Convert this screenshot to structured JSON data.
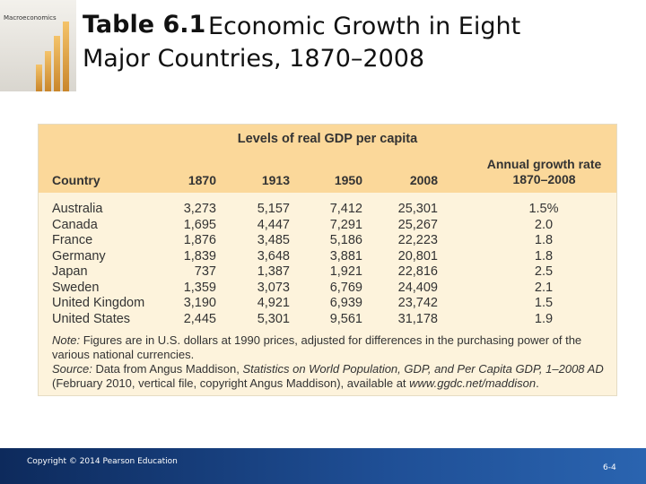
{
  "cover": {
    "title": "Macroeconomics"
  },
  "header": {
    "label": "Table 6.1",
    "title": "Economic Growth in Eight Major Countries, 1870–2008"
  },
  "table": {
    "group_header": "Levels of real GDP per capita",
    "columns": [
      "Country",
      "1870",
      "1913",
      "1950",
      "2008",
      "Annual growth rate 1870–2008"
    ],
    "rows": [
      [
        "Australia",
        "3,273",
        "5,157",
        "7,412",
        "25,301",
        "1.5%"
      ],
      [
        "Canada",
        "1,695",
        "4,447",
        "7,291",
        "25,267",
        "2.0"
      ],
      [
        "France",
        "1,876",
        "3,485",
        "5,186",
        "22,223",
        "1.8"
      ],
      [
        "Germany",
        "1,839",
        "3,648",
        "3,881",
        "20,801",
        "1.8"
      ],
      [
        "Japan",
        "737",
        "1,387",
        "1,921",
        "22,816",
        "2.5"
      ],
      [
        "Sweden",
        "1,359",
        "3,073",
        "6,769",
        "24,409",
        "2.1"
      ],
      [
        "United Kingdom",
        "3,190",
        "4,921",
        "6,939",
        "23,742",
        "1.5"
      ],
      [
        "United States",
        "2,445",
        "5,301",
        "9,561",
        "31,178",
        "1.9"
      ]
    ],
    "note": {
      "label": "Note:",
      "text": "Figures are in U.S. dollars at 1990 prices, adjusted for differences in the purchasing power of the various national currencies."
    },
    "source": {
      "label": "Source:",
      "parts": [
        "Data from Angus Maddison, ",
        "Statistics on World Population, GDP, and Per Capita GDP, 1–2008 AD",
        " (February 2010, vertical file, copyright Angus Maddison), available at ",
        "www.ggdc.net/maddison",
        "."
      ]
    }
  },
  "footer": {
    "copyright": "Copyright © 2014 Pearson Education",
    "page": "6-4"
  }
}
